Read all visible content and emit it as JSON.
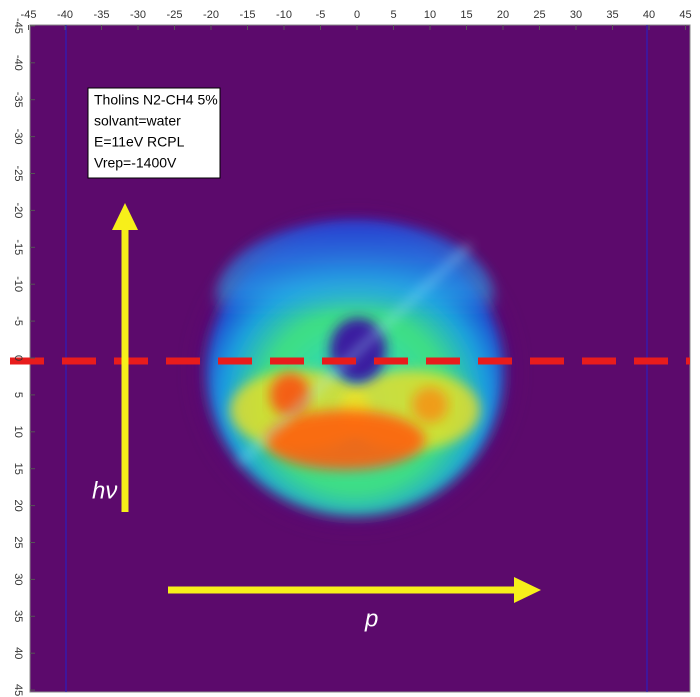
{
  "x_axis": {
    "ticks": [
      -45,
      -40,
      -35,
      -30,
      -25,
      -20,
      -15,
      -10,
      -5,
      0,
      5,
      10,
      15,
      20,
      25,
      30,
      35,
      40,
      45
    ]
  },
  "y_axis": {
    "ticks": [
      -45,
      -40,
      -35,
      -30,
      -25,
      -20,
      -15,
      -10,
      -5,
      0,
      5,
      10,
      15,
      20,
      25,
      30,
      35,
      40,
      45
    ]
  },
  "legend": {
    "lines": [
      "Tholins N2-CH4 5%",
      "solvant=water",
      "E=11eV RCPL",
      "Vrep=-1400V"
    ]
  },
  "labels": {
    "photon": "hν",
    "momentum": "p"
  }
}
